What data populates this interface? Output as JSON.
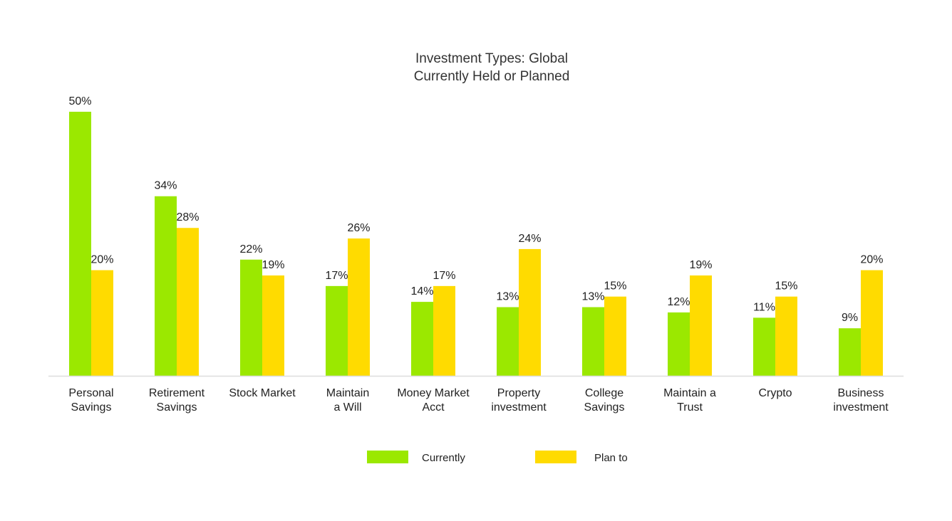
{
  "chart_data": {
    "type": "bar",
    "title": [
      "Investment Types: Global",
      "Currently Held or Planned"
    ],
    "categories": [
      [
        "Personal",
        "Savings"
      ],
      [
        "Retirement",
        "Savings"
      ],
      [
        "Stock Market"
      ],
      [
        "Maintain",
        "a Will"
      ],
      [
        "Money Market",
        "Acct"
      ],
      [
        "Property",
        "investment"
      ],
      [
        "College",
        "Savings"
      ],
      [
        "Maintain a",
        "Trust"
      ],
      [
        "Crypto"
      ],
      [
        "Business",
        "investment"
      ]
    ],
    "series": [
      {
        "name": "Currently",
        "color": "#9be800",
        "values": [
          50,
          34,
          22,
          17,
          14,
          13,
          13,
          12,
          11,
          9
        ]
      },
      {
        "name": "Plan to",
        "color": "#ffdb00",
        "values": [
          20,
          28,
          19,
          26,
          17,
          24,
          15,
          19,
          15,
          20
        ]
      }
    ],
    "value_suffix": "%",
    "ylim": [
      0,
      50
    ],
    "grid": false,
    "legend_position": "bottom-center",
    "axis_line_color": "#dddddd"
  }
}
